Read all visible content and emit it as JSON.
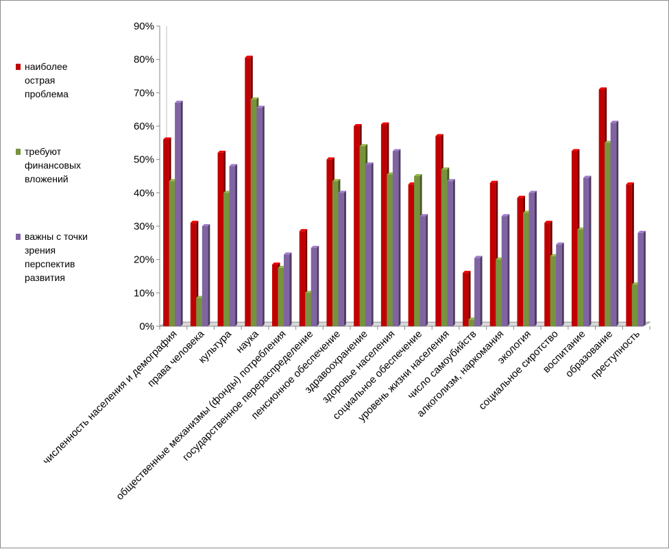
{
  "chart_data": {
    "type": "bar",
    "categories": [
      "численность населения и демография",
      "права человека",
      "культура",
      "наука",
      "общественные механизмы (фонды) потребления",
      "государственное перераспределение",
      "пенсионное обеспечение",
      "здравоохранение",
      "здоровье населения",
      "социальное обеспечение",
      "уровень жизни населения",
      "число самоубийств",
      "алкоголизм, наркомания",
      "экология",
      "социальное сиротство",
      "воспитание",
      "образование",
      "преступность"
    ],
    "series": [
      {
        "name": "наиболее острая проблема",
        "color": "#c00000",
        "values": [
          56,
          31,
          52,
          80.5,
          18.5,
          28.5,
          50,
          60,
          60.5,
          42.5,
          57,
          16,
          43,
          38.5,
          31,
          52.5,
          71,
          42.5
        ]
      },
      {
        "name": "требуют финансовых вложений",
        "color": "#77933c",
        "values": [
          43.5,
          8.5,
          40,
          68,
          17.5,
          10,
          43.5,
          54,
          45.5,
          45,
          47,
          2,
          20,
          34,
          21,
          29,
          55,
          12.5
        ]
      },
      {
        "name": "важны с точки зрения перспектив развития",
        "color": "#8064a2",
        "values": [
          67,
          30,
          48,
          65.5,
          21.5,
          23.5,
          40,
          48.5,
          52.5,
          33,
          43.5,
          20.5,
          33,
          40,
          24.5,
          44.5,
          61,
          28
        ]
      }
    ],
    "yticks": [
      "0%",
      "10%",
      "20%",
      "30%",
      "40%",
      "50%",
      "60%",
      "70%",
      "80%",
      "90%"
    ],
    "ylim": [
      0,
      90
    ],
    "title": "",
    "xlabel": "",
    "ylabel": "",
    "grid": false,
    "legend": "left"
  }
}
